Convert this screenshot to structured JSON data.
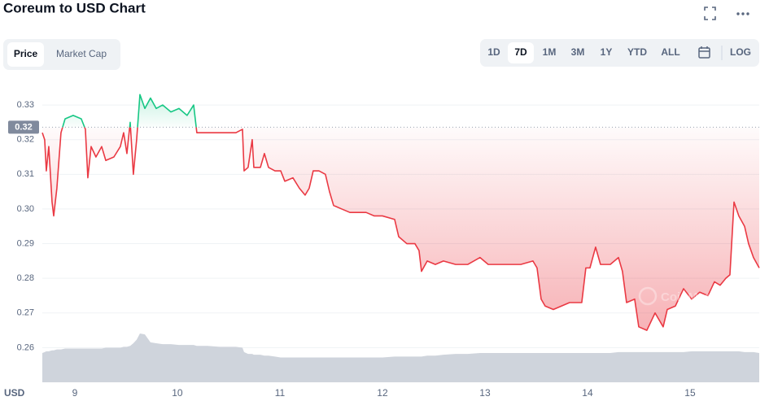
{
  "ui": {
    "title": "Coreum to USD Chart",
    "tabs": [
      "Price",
      "Market Cap"
    ],
    "active_tab": "Price",
    "ranges": [
      "1D",
      "7D",
      "1M",
      "3M",
      "1Y",
      "YTD",
      "ALL"
    ],
    "active_range": "7D",
    "log_button": "LOG",
    "currency": "USD",
    "watermark": "CoinMarketCap"
  },
  "chart_data": {
    "type": "line",
    "x": [
      8.683,
      8.706,
      8.722,
      8.746,
      8.778,
      8.794,
      8.825,
      8.865,
      8.905,
      8.984,
      9.063,
      9.103,
      9.127,
      9.159,
      9.206,
      9.262,
      9.302,
      9.381,
      9.444,
      9.476,
      9.508,
      9.54,
      9.571,
      9.603,
      9.635,
      9.683,
      9.738,
      9.794,
      9.857,
      9.937,
      10.016,
      10.095,
      10.159,
      10.19,
      10.294,
      10.413,
      10.571,
      10.635,
      10.651,
      10.69,
      10.73,
      10.746,
      10.81,
      10.849,
      10.889,
      10.952,
      11.008,
      11.048,
      11.127,
      11.19,
      11.246,
      11.286,
      11.325,
      11.381,
      11.444,
      11.484,
      11.524,
      11.603,
      11.683,
      11.762,
      11.841,
      11.921,
      12.0,
      12.119,
      12.159,
      12.238,
      12.317,
      12.357,
      12.381,
      12.437,
      12.516,
      12.595,
      12.714,
      12.833,
      12.952,
      13.032,
      13.19,
      13.349,
      13.468,
      13.508,
      13.548,
      13.587,
      13.667,
      13.746,
      13.825,
      13.944,
      13.984,
      14.024,
      14.079,
      14.127,
      14.222,
      14.302,
      14.341,
      14.381,
      14.46,
      14.5,
      14.579,
      14.659,
      14.738,
      14.778,
      14.857,
      14.937,
      15.016,
      15.095,
      15.175,
      15.238,
      15.294,
      15.349,
      15.389,
      15.429,
      15.476,
      15.532,
      15.571,
      15.619,
      15.675
    ],
    "values": [
      0.322,
      0.32,
      0.311,
      0.318,
      0.302,
      0.298,
      0.306,
      0.322,
      0.326,
      0.327,
      0.326,
      0.323,
      0.309,
      0.318,
      0.315,
      0.318,
      0.314,
      0.315,
      0.318,
      0.322,
      0.316,
      0.325,
      0.31,
      0.32,
      0.333,
      0.329,
      0.332,
      0.329,
      0.33,
      0.328,
      0.329,
      0.327,
      0.33,
      0.322,
      0.322,
      0.322,
      0.322,
      0.323,
      0.311,
      0.312,
      0.32,
      0.312,
      0.312,
      0.316,
      0.312,
      0.311,
      0.311,
      0.308,
      0.309,
      0.306,
      0.304,
      0.306,
      0.311,
      0.311,
      0.31,
      0.305,
      0.301,
      0.3,
      0.299,
      0.299,
      0.299,
      0.298,
      0.298,
      0.297,
      0.292,
      0.29,
      0.29,
      0.288,
      0.282,
      0.285,
      0.284,
      0.285,
      0.284,
      0.284,
      0.286,
      0.284,
      0.284,
      0.284,
      0.285,
      0.283,
      0.274,
      0.272,
      0.271,
      0.272,
      0.273,
      0.273,
      0.283,
      0.283,
      0.289,
      0.284,
      0.284,
      0.286,
      0.282,
      0.273,
      0.274,
      0.266,
      0.265,
      0.27,
      0.266,
      0.271,
      0.272,
      0.277,
      0.274,
      0.276,
      0.275,
      0.279,
      0.278,
      0.28,
      0.281,
      0.302,
      0.298,
      0.295,
      0.29,
      0.286,
      0.283
    ],
    "volume": [
      33,
      34,
      35,
      35,
      36,
      36,
      37,
      37,
      38,
      38,
      38,
      38,
      38,
      38,
      38,
      38,
      39,
      39,
      39,
      40,
      40,
      41,
      44,
      48,
      55,
      54,
      45,
      44,
      43,
      43,
      42,
      42,
      42,
      41,
      41,
      40,
      40,
      39,
      34,
      32,
      32,
      31,
      31,
      30,
      30,
      29,
      28,
      28,
      28,
      28,
      28,
      28,
      28,
      28,
      28,
      28,
      28,
      28,
      28,
      28,
      28,
      28,
      28,
      29,
      29,
      29,
      29,
      29,
      29,
      30,
      30,
      31,
      32,
      32,
      33,
      33,
      33,
      33,
      33,
      33,
      33,
      33,
      33,
      33,
      33,
      33,
      33,
      33,
      33,
      33,
      33,
      34,
      34,
      34,
      34,
      34,
      34,
      34,
      34,
      34,
      34,
      34,
      35,
      35,
      35,
      35,
      35,
      35,
      35,
      35,
      35,
      34,
      34,
      34,
      33
    ],
    "color_above": "#16c784",
    "color_below": "#ea3943",
    "volume_color": "#cfd4dc",
    "reference": {
      "value": 0.3236,
      "label": "0.32"
    },
    "xlim": [
      8.683,
      15.675
    ],
    "xticks": [
      9,
      10,
      11,
      12,
      13,
      14,
      15
    ],
    "ylim": [
      0.25,
      0.338
    ],
    "yticks": [
      0.26,
      0.27,
      0.28,
      0.29,
      {
        "value": 0.3,
        "label": "0.30"
      },
      0.31,
      0.32,
      0.33
    ],
    "grid": true
  }
}
